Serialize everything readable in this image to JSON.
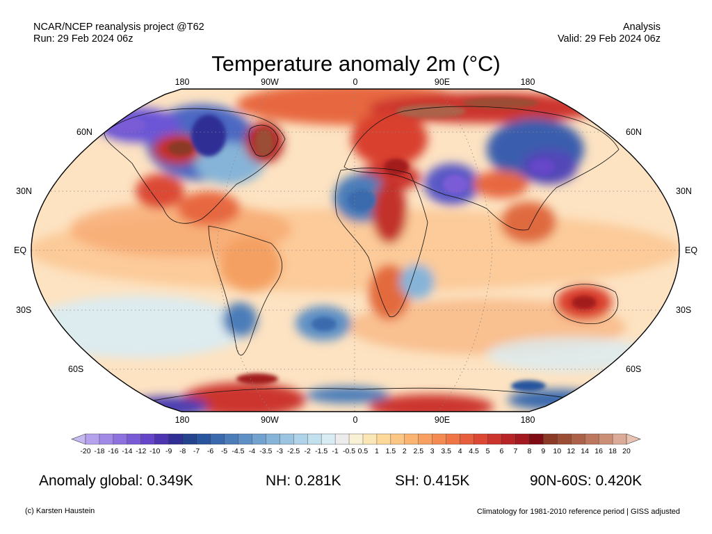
{
  "header": {
    "source": "NCAR/NCEP reanalysis project @T62",
    "run": "Run: 29 Feb 2024 06z",
    "kind": "Analysis",
    "valid": "Valid: 29 Feb 2024 06z",
    "title": "Temperature anomaly 2m (°C)"
  },
  "map": {
    "projection": "Robinson",
    "lon_labels": [
      "180",
      "90W",
      "0",
      "90E",
      "180"
    ],
    "lat_labels_left": [
      "60N",
      "30N",
      "EQ",
      "30S",
      "60S"
    ],
    "lat_labels_right": [
      "60N",
      "30N",
      "EQ",
      "30S",
      "60S"
    ],
    "graticule_style": "dotted",
    "coastlines": true
  },
  "colorbar": {
    "labels": [
      "-20",
      "-18",
      "-16",
      "-14",
      "-12",
      "-10",
      "-9",
      "-8",
      "-7",
      "-6",
      "-5",
      "-4.5",
      "-4",
      "-3.5",
      "-3",
      "-2.5",
      "-2",
      "-1.5",
      "-1",
      "-0.5",
      "0.5",
      "1",
      "1.5",
      "2",
      "2.5",
      "3",
      "3.5",
      "4",
      "4.5",
      "5",
      "6",
      "7",
      "8",
      "9",
      "10",
      "12",
      "14",
      "16",
      "18",
      "20"
    ],
    "colors": [
      "#c6b9f2",
      "#b4a2ec",
      "#a08ae6",
      "#8d72df",
      "#7a5bd6",
      "#6546c8",
      "#4d34b1",
      "#2f2f95",
      "#23438f",
      "#28559e",
      "#3a6aad",
      "#4c7db9",
      "#5f90c5",
      "#72a2cf",
      "#86b4d8",
      "#9ac4e0",
      "#afd3e8",
      "#c3e0ee",
      "#d9ecf4",
      "#ececec",
      "#f8f1d6",
      "#fbe6b6",
      "#fcd899",
      "#fcc784",
      "#fbb472",
      "#f8a062",
      "#f48b53",
      "#ef7546",
      "#e75e3c",
      "#dc4834",
      "#cc352d",
      "#b82526",
      "#a21a1f",
      "#7f0c13",
      "#8a3a26",
      "#9b4d36",
      "#ac6249",
      "#bc775e",
      "#cb8f77",
      "#dcab97",
      "#e8c3b3"
    ]
  },
  "stats": {
    "global": "Anomaly global: 0.349K",
    "nh": "NH: 0.281K",
    "sh": "SH: 0.415K",
    "arctic": "90N-60S: 0.420K"
  },
  "footer": {
    "credit": "(c) Karsten Haustein",
    "note": "Climatology for 1981-2010 reference period | GISS adjusted"
  }
}
